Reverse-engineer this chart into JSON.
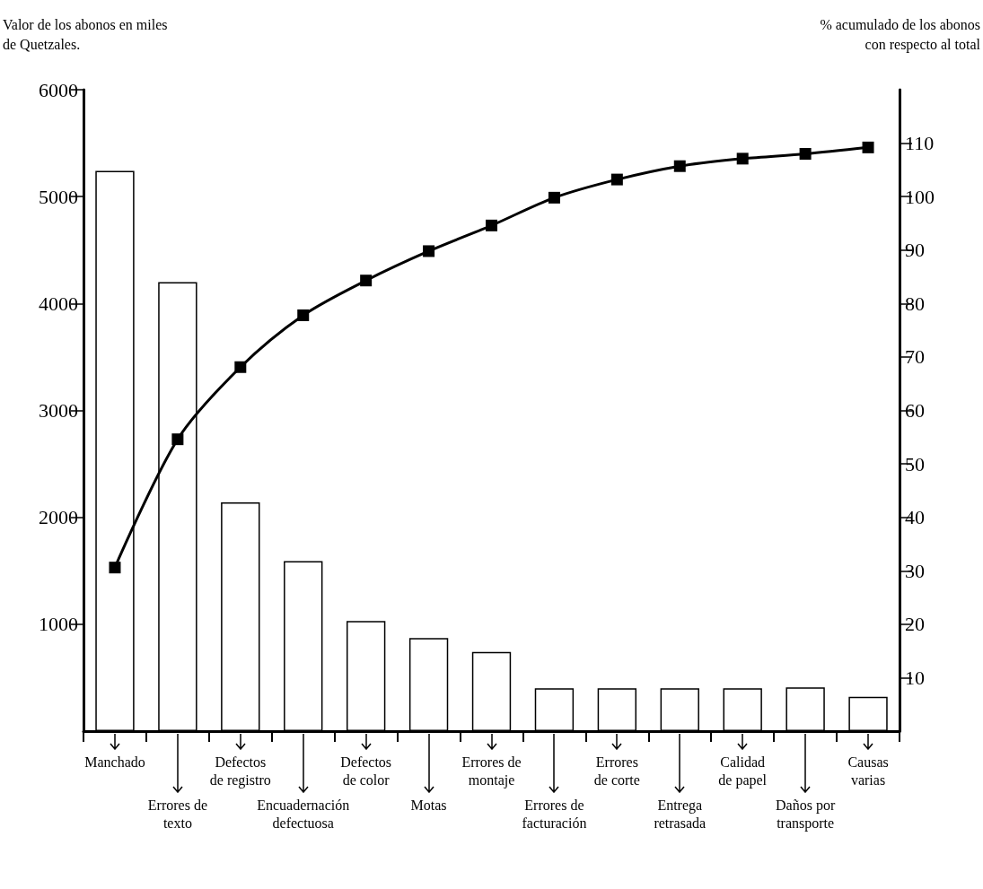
{
  "chart_data": {
    "type": "bar",
    "ylabel": "Valor de los abonos en miles\nde Quetzales.",
    "y2label": "% acumulado de los abonos\ncon respecto al total",
    "categories": [
      "Manchado",
      "Errores de\ntexto",
      "Defectos\nde registro",
      "Encuadernación\ndefectuosa",
      "Defectos\nde color",
      "Motas",
      "Errores de\nmontaje",
      "Errores de\nfacturación",
      "Errores\nde corte",
      "Entrega\nretrasada",
      "Calidad\nde papel",
      "Daños por\ntransporte",
      "Causas\nvarias"
    ],
    "series": [
      {
        "color": "#ffffff",
        "values": [
          5240,
          4200,
          2140,
          1590,
          1030,
          870,
          740,
          400,
          400,
          400,
          400,
          410,
          320
        ]
      },
      {
        "type": "line",
        "axis": "y2",
        "color": "#000000",
        "values": [
          30.6,
          54.6,
          68.1,
          77.8,
          84.3,
          89.8,
          94.6,
          99.8,
          103.2,
          105.7,
          107.1,
          108.0,
          109.2
        ]
      }
    ],
    "marker": "square",
    "line_style": "solid",
    "ylim": [
      0,
      6000
    ],
    "yticks": [
      1000,
      2000,
      3000,
      4000,
      5000,
      6000
    ],
    "y2lim": [
      0,
      120
    ],
    "y2ticks": [
      10,
      20,
      30,
      40,
      50,
      60,
      70,
      80,
      90,
      100,
      110
    ]
  }
}
